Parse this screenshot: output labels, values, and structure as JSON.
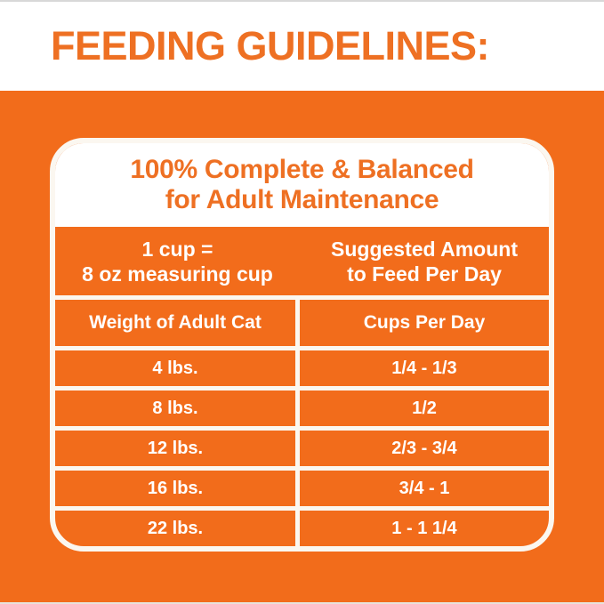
{
  "colors": {
    "background_orange": "#F26C1B",
    "heading_orange": "#EE7023",
    "line_cream": "#FBF7F0",
    "text_white": "#FFFFFF"
  },
  "header": {
    "title": "FEEDING GUIDELINES:"
  },
  "card": {
    "title_line1": "100% Complete & Balanced",
    "title_line2": "for Adult Maintenance"
  },
  "chart_data": {
    "type": "table",
    "title": "FEEDING GUIDELINES:",
    "subtitle": "100% Complete & Balanced for Adult Maintenance",
    "measure_note": {
      "line1": "1 cup =",
      "line2": "8 oz measuring cup"
    },
    "amount_note": {
      "line1": "Suggested Amount",
      "line2": "to Feed Per Day"
    },
    "columns": [
      "Weight of Adult Cat",
      "Cups Per Day"
    ],
    "rows": [
      [
        "4 lbs.",
        "1/4 - 1/3"
      ],
      [
        "8 lbs.",
        "1/2"
      ],
      [
        "12 lbs.",
        "2/3 - 3/4"
      ],
      [
        "16 lbs.",
        "3/4 - 1"
      ],
      [
        "22 lbs.",
        "1 - 1 1/4"
      ]
    ]
  }
}
